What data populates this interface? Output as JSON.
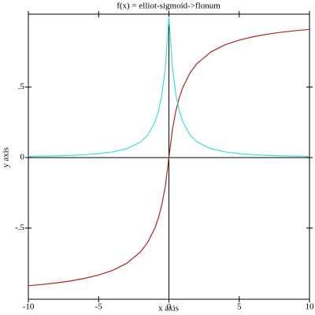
{
  "chart_data": {
    "type": "line",
    "title": "f(x) = elliot-sigmoid->flonum",
    "x_label": "x axis",
    "y_label": "y axis",
    "x": [
      -10,
      -9,
      -8,
      -7,
      -6,
      -5,
      -4,
      -3,
      -2,
      -1.5,
      -1,
      -0.75,
      -0.5,
      -0.25,
      0,
      0.25,
      0.5,
      0.75,
      1,
      1.5,
      2,
      3,
      4,
      5,
      6,
      7,
      8,
      9,
      10
    ],
    "series": [
      {
        "color": "#b22222",
        "values": [
          -0.909,
          -0.9,
          -0.889,
          -0.875,
          -0.857,
          -0.833,
          -0.8,
          -0.75,
          -0.667,
          -0.6,
          -0.5,
          -0.429,
          -0.333,
          -0.2,
          0,
          0.2,
          0.333,
          0.429,
          0.5,
          0.6,
          0.667,
          0.75,
          0.8,
          0.833,
          0.857,
          0.875,
          0.889,
          0.9,
          0.909
        ]
      },
      {
        "color": "#40e0d0",
        "values": [
          0.0083,
          0.01,
          0.0123,
          0.0156,
          0.0204,
          0.0278,
          0.04,
          0.0625,
          0.1111,
          0.16,
          0.25,
          0.3265,
          0.4444,
          0.64,
          1,
          0.64,
          0.4444,
          0.3265,
          0.25,
          0.16,
          0.1111,
          0.0625,
          0.04,
          0.0278,
          0.0204,
          0.0156,
          0.0123,
          0.01,
          0.0083
        ]
      }
    ],
    "xlim": [
      -10,
      10
    ],
    "ylim": [
      -1.005,
      1.017
    ],
    "xticks": [
      -10,
      -5,
      0,
      5,
      10
    ],
    "yticks": [
      {
        "value": -0.5,
        "label": "-.5"
      },
      0,
      {
        "value": 0.5,
        "label": ".5"
      }
    ]
  }
}
